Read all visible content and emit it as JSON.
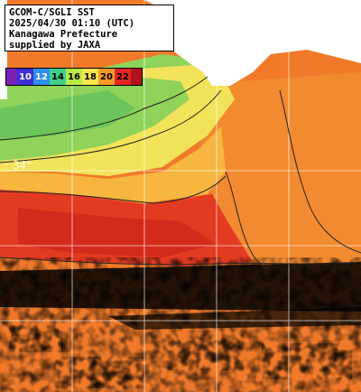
{
  "info": {
    "line1": "GCOM-C/SGLI SST",
    "line2": "2025/04/30 01:10 (UTC)",
    "line3": "Kanagawa Prefecture",
    "line4": "supplied by JAXA"
  },
  "legend": {
    "items": [
      {
        "label": "10",
        "color": "#3a2fd8",
        "text_color": "#ffffff"
      },
      {
        "label": "12",
        "color": "#2f8fe8",
        "text_color": "#ffffff"
      },
      {
        "label": "14",
        "color": "#3fd08a",
        "text_color": "#000000"
      },
      {
        "label": "16",
        "color": "#b8e84a",
        "text_color": "#000000"
      },
      {
        "label": "18",
        "color": "#f6e64a",
        "text_color": "#000000"
      },
      {
        "label": "20",
        "color": "#f59a2a",
        "text_color": "#000000"
      },
      {
        "label": "22",
        "color": "#e0281e",
        "text_color": "#000000"
      }
    ],
    "start_color": "#7a1fb8",
    "end_color": "#b0121a"
  },
  "map": {
    "latitude_label": "34°",
    "colors": {
      "land": "#ffffff",
      "cloud": "#000000",
      "grid": "#ffffff"
    }
  }
}
